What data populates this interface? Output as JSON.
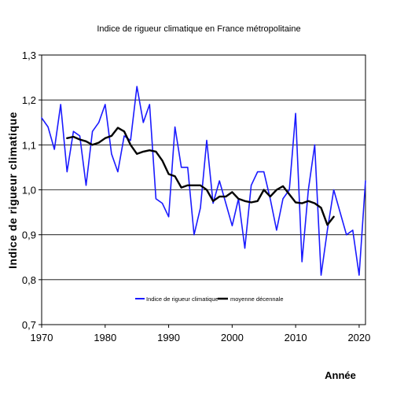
{
  "chart_data": {
    "type": "line",
    "title": "Indice de rigueur climatique  en France métropolitaine",
    "xlabel": "Année",
    "ylabel": "Indice de rigueur  climatique",
    "xlim": [
      1970,
      2021
    ],
    "ylim": [
      0.7,
      1.3
    ],
    "x_ticks": [
      1970,
      1980,
      1990,
      2000,
      2010,
      2020
    ],
    "y_ticks": [
      "0,7",
      "0,8",
      "0,9",
      "1,0",
      "1,1",
      "1,2",
      "1,3"
    ],
    "y_tick_values": [
      0.7,
      0.8,
      0.9,
      1.0,
      1.1,
      1.2,
      1.3
    ],
    "grid": "horizontal",
    "legend_position": "bottom-center",
    "series": [
      {
        "name": "Indice de rigueur climatique",
        "color": "#1a1aff",
        "points": [
          [
            1970,
            1.16
          ],
          [
            1971,
            1.14
          ],
          [
            1972,
            1.09
          ],
          [
            1973,
            1.19
          ],
          [
            1974,
            1.04
          ],
          [
            1975,
            1.13
          ],
          [
            1976,
            1.12
          ],
          [
            1977,
            1.01
          ],
          [
            1978,
            1.13
          ],
          [
            1979,
            1.15
          ],
          [
            1980,
            1.19
          ],
          [
            1981,
            1.08
          ],
          [
            1982,
            1.04
          ],
          [
            1983,
            1.12
          ],
          [
            1984,
            1.11
          ],
          [
            1985,
            1.23
          ],
          [
            1986,
            1.15
          ],
          [
            1987,
            1.19
          ],
          [
            1988,
            0.98
          ],
          [
            1989,
            0.97
          ],
          [
            1990,
            0.94
          ],
          [
            1991,
            1.14
          ],
          [
            1992,
            1.05
          ],
          [
            1993,
            1.05
          ],
          [
            1994,
            0.9
          ],
          [
            1995,
            0.96
          ],
          [
            1996,
            1.11
          ],
          [
            1997,
            0.97
          ],
          [
            1998,
            1.02
          ],
          [
            1999,
            0.97
          ],
          [
            2000,
            0.92
          ],
          [
            2001,
            0.98
          ],
          [
            2002,
            0.87
          ],
          [
            2003,
            1.01
          ],
          [
            2004,
            1.04
          ],
          [
            2005,
            1.04
          ],
          [
            2006,
            0.98
          ],
          [
            2007,
            0.91
          ],
          [
            2008,
            0.98
          ],
          [
            2009,
            1.0
          ],
          [
            2010,
            1.17
          ],
          [
            2011,
            0.84
          ],
          [
            2012,
            1.0
          ],
          [
            2013,
            1.1
          ],
          [
            2014,
            0.81
          ],
          [
            2015,
            0.91
          ],
          [
            2016,
            1.0
          ],
          [
            2017,
            0.95
          ],
          [
            2018,
            0.9
          ],
          [
            2019,
            0.91
          ],
          [
            2020,
            0.81
          ],
          [
            2021,
            1.02
          ]
        ]
      },
      {
        "name": "moyenne décennale",
        "color": "#000000",
        "points": [
          [
            1974,
            1.115
          ],
          [
            1975,
            1.118
          ],
          [
            1976,
            1.112
          ],
          [
            1977,
            1.108
          ],
          [
            1978,
            1.1
          ],
          [
            1979,
            1.105
          ],
          [
            1980,
            1.115
          ],
          [
            1981,
            1.12
          ],
          [
            1982,
            1.138
          ],
          [
            1983,
            1.13
          ],
          [
            1984,
            1.1
          ],
          [
            1985,
            1.08
          ],
          [
            1986,
            1.085
          ],
          [
            1987,
            1.088
          ],
          [
            1988,
            1.085
          ],
          [
            1989,
            1.065
          ],
          [
            1990,
            1.035
          ],
          [
            1991,
            1.03
          ],
          [
            1992,
            1.005
          ],
          [
            1993,
            1.01
          ],
          [
            1994,
            1.01
          ],
          [
            1995,
            1.01
          ],
          [
            1996,
            1.0
          ],
          [
            1997,
            0.975
          ],
          [
            1998,
            0.985
          ],
          [
            1999,
            0.985
          ],
          [
            2000,
            0.995
          ],
          [
            2001,
            0.98
          ],
          [
            2002,
            0.975
          ],
          [
            2003,
            0.972
          ],
          [
            2004,
            0.975
          ],
          [
            2005,
            1.0
          ],
          [
            2006,
            0.985
          ],
          [
            2007,
            1.0
          ],
          [
            2008,
            1.008
          ],
          [
            2009,
            0.99
          ],
          [
            2010,
            0.972
          ],
          [
            2011,
            0.97
          ],
          [
            2012,
            0.975
          ],
          [
            2013,
            0.97
          ],
          [
            2014,
            0.96
          ],
          [
            2015,
            0.922
          ],
          [
            2016,
            0.94
          ]
        ]
      }
    ]
  }
}
